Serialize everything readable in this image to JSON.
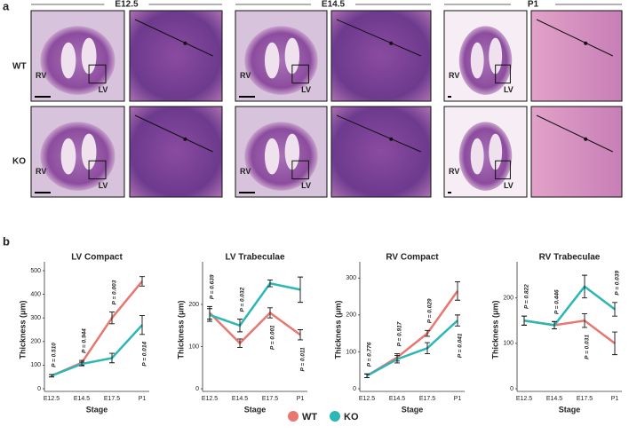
{
  "panel_a": {
    "label": "a",
    "columns": [
      "E12.5",
      "E14.5",
      "P1"
    ],
    "rows": [
      "WT",
      "KO"
    ],
    "rv": "RV",
    "lv": "LV"
  },
  "panel_b": {
    "label": "b"
  },
  "chart_data": [
    {
      "type": "line",
      "title": "LV Compact",
      "x_label": "Stage",
      "y_label": "Thickness (μm)",
      "categories": [
        "E12.5",
        "E14.5",
        "E17.5",
        "P1"
      ],
      "ylim": [
        0,
        500
      ],
      "yticks": [
        0,
        100,
        200,
        300,
        400,
        500
      ],
      "series": [
        {
          "name": "WT",
          "color": "#e8776f",
          "values": [
            55,
            110,
            300,
            455
          ],
          "errors": [
            5,
            10,
            25,
            20
          ]
        },
        {
          "name": "KO",
          "color": "#2bb7b5",
          "values": [
            55,
            105,
            130,
            270
          ],
          "errors": [
            5,
            8,
            20,
            40
          ]
        }
      ],
      "p_values": [
        "P = 0.510",
        "P = 0.944",
        "P = 0.003",
        "P = 0.014"
      ]
    },
    {
      "type": "line",
      "title": "LV Trabeculae",
      "x_label": "Stage",
      "y_label": "Thickness (μm)",
      "categories": [
        "E12.5",
        "E14.5",
        "E17.5",
        "P1"
      ],
      "ylim": [
        0,
        280
      ],
      "yticks": [
        0,
        100,
        200
      ],
      "series": [
        {
          "name": "WT",
          "color": "#e8776f",
          "values": [
            180,
            108,
            180,
            128
          ],
          "errors": [
            15,
            10,
            12,
            12
          ]
        },
        {
          "name": "KO",
          "color": "#2bb7b5",
          "values": [
            175,
            150,
            250,
            235
          ],
          "errors": [
            15,
            15,
            8,
            30
          ]
        }
      ],
      "p_values": [
        "P = 0.639",
        "P = 0.032",
        "P = 0.001",
        "P = 0.011"
      ]
    },
    {
      "type": "line",
      "title": "RV Compact",
      "x_label": "Stage",
      "y_label": "Thickness (μm)",
      "categories": [
        "E12.5",
        "E14.5",
        "E17.5",
        "P1"
      ],
      "ylim": [
        0,
        320
      ],
      "yticks": [
        0,
        100,
        200,
        300
      ],
      "series": [
        {
          "name": "WT",
          "color": "#e8776f",
          "values": [
            35,
            85,
            150,
            265
          ],
          "errors": [
            5,
            10,
            8,
            25
          ]
        },
        {
          "name": "KO",
          "color": "#2bb7b5",
          "values": [
            35,
            80,
            110,
            185
          ],
          "errors": [
            5,
            10,
            15,
            15
          ]
        }
      ],
      "p_values": [
        "P = 0.776",
        "P = 0.917",
        "P = 0.029",
        "P = 0.041"
      ]
    },
    {
      "type": "line",
      "title": "RV Trabeculae",
      "x_label": "Stage",
      "y_label": "Thickness (μm)",
      "categories": [
        "E12.5",
        "E14.5",
        "E17.5",
        "P1"
      ],
      "ylim": [
        0,
        260
      ],
      "yticks": [
        0,
        100,
        200
      ],
      "series": [
        {
          "name": "WT",
          "color": "#e8776f",
          "values": [
            150,
            140,
            150,
            100
          ],
          "errors": [
            10,
            8,
            15,
            25
          ]
        },
        {
          "name": "KO",
          "color": "#2bb7b5",
          "values": [
            150,
            140,
            225,
            175
          ],
          "errors": [
            10,
            8,
            25,
            15
          ]
        }
      ],
      "p_values": [
        "P = 0.822",
        "P = 0.446",
        "P = 0.031",
        "P = 0.039"
      ]
    }
  ]
}
